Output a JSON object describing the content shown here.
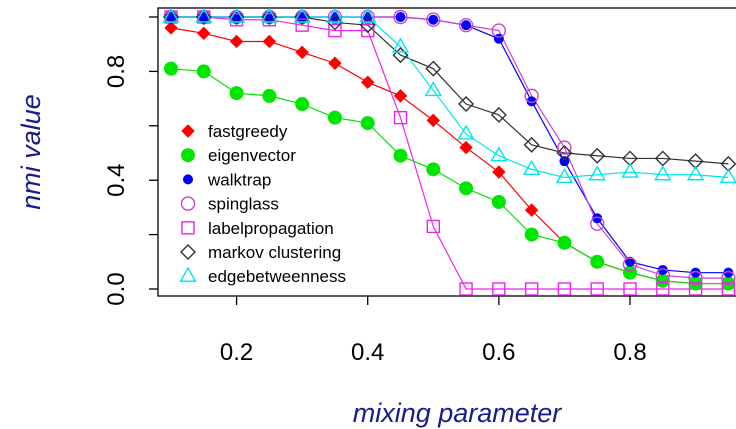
{
  "chart_data": {
    "type": "line",
    "title": "",
    "xlabel": "mixing parameter",
    "ylabel": "nmi value",
    "xlim": [
      0.07,
      0.98
    ],
    "ylim": [
      -0.02,
      1.02
    ],
    "xticks": [
      "0.2",
      "0.4",
      "0.6",
      "0.8"
    ],
    "xtick_values": [
      0.2,
      0.4,
      0.6,
      0.8
    ],
    "yticks": [
      "0.0",
      "0.4",
      "0.8"
    ],
    "ytick_values": [
      0.0,
      0.2,
      0.4,
      0.6,
      0.8,
      1.0
    ],
    "ytick_labeled": [
      true,
      false,
      true,
      false,
      true,
      false
    ],
    "grid": false,
    "legend_position": "left",
    "x": [
      0.1,
      0.15,
      0.2,
      0.25,
      0.3,
      0.35,
      0.4,
      0.45,
      0.5,
      0.55,
      0.6,
      0.65,
      0.7,
      0.75,
      0.8,
      0.85,
      0.9,
      0.95
    ],
    "series": [
      {
        "name": "fastgreedy",
        "color": "#ff0000",
        "marker": "diamond-filled",
        "values": [
          0.96,
          0.94,
          0.91,
          0.91,
          0.87,
          0.83,
          0.76,
          0.71,
          0.62,
          0.52,
          0.43,
          0.29,
          0.17,
          0.1,
          0.06,
          0.03,
          0.02,
          0.02
        ]
      },
      {
        "name": "eigenvector",
        "color": "#00e600",
        "marker": "circle-filled",
        "values": [
          0.81,
          0.8,
          0.72,
          0.71,
          0.68,
          0.63,
          0.61,
          0.49,
          0.44,
          0.37,
          0.32,
          0.2,
          0.17,
          0.1,
          0.06,
          0.03,
          0.02,
          0.02
        ]
      },
      {
        "name": "walktrap",
        "color": "#0000ff",
        "marker": "circle-filled-small",
        "values": [
          1.0,
          1.0,
          1.0,
          1.0,
          1.0,
          1.0,
          1.0,
          1.0,
          0.99,
          0.97,
          0.92,
          0.69,
          0.47,
          0.26,
          0.1,
          0.07,
          0.06,
          0.06
        ]
      },
      {
        "name": "spinglass",
        "color": "#cc44cc",
        "marker": "circle-open",
        "values": [
          1.0,
          1.0,
          1.0,
          1.0,
          1.0,
          1.0,
          1.0,
          1.0,
          0.99,
          0.97,
          0.95,
          0.71,
          0.52,
          0.24,
          0.09,
          0.05,
          0.04,
          0.04
        ]
      },
      {
        "name": "labelpropagation",
        "color": "#ee22ee",
        "marker": "square-open",
        "values": [
          1.0,
          1.0,
          0.99,
          0.99,
          0.97,
          0.95,
          0.95,
          0.63,
          0.23,
          0.0,
          0.0,
          0.0,
          0.0,
          0.0,
          0.0,
          0.0,
          0.0,
          0.0
        ]
      },
      {
        "name": "markov clustering",
        "color": "#333333",
        "marker": "diamond-open",
        "values": [
          1.0,
          1.0,
          1.0,
          1.0,
          1.0,
          0.98,
          0.97,
          0.86,
          0.81,
          0.68,
          0.64,
          0.53,
          0.5,
          0.49,
          0.48,
          0.48,
          0.47,
          0.46
        ]
      },
      {
        "name": "edgebetweenness",
        "color": "#00e5ee",
        "marker": "triangle-open",
        "values": [
          1.0,
          1.0,
          1.0,
          1.0,
          1.0,
          1.0,
          1.0,
          0.89,
          0.73,
          0.57,
          0.49,
          0.44,
          0.41,
          0.42,
          0.43,
          0.42,
          0.42,
          0.41
        ]
      }
    ]
  }
}
